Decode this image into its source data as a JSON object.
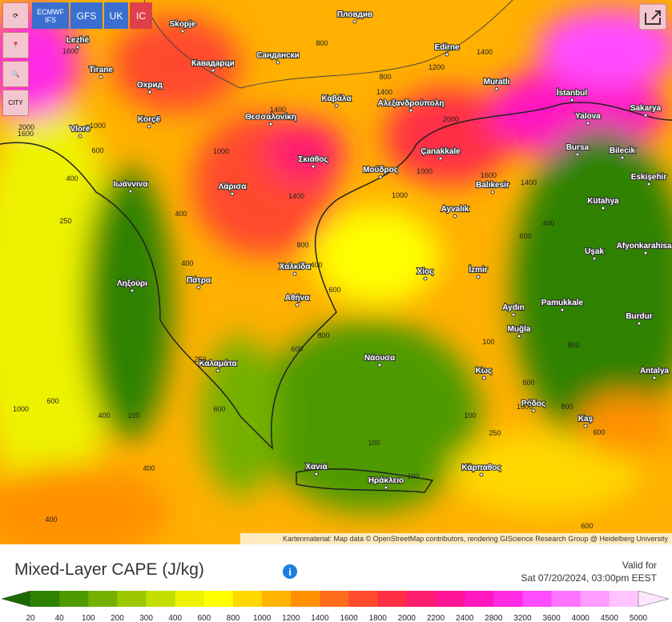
{
  "controls": {
    "models": [
      "ECMWF IFS",
      "GFS",
      "UK",
      "IC"
    ],
    "city_button": "CITY"
  },
  "cities": [
    "Skopje",
    "Пловдив",
    "Lezhë",
    "Tirane",
    "Кавадарци",
    "Сандански",
    "Edirne",
    "Охрид",
    "Muratlı",
    "İstanbul",
    "Καβάλα",
    "Αλεξανδρούπολη",
    "Θεσσαλονίκη",
    "Korçë",
    "Vlorë",
    "Yalova",
    "Sakarya",
    "Çanakkale",
    "Bursa",
    "Bilecik",
    "Σκιάθος",
    "Μούδρος",
    "Balıkesir",
    "Eskişehir",
    "Ιωάννινα",
    "Λάρισα",
    "Kütahya",
    "Ayvalık",
    "Afyonkarahisar",
    "Uşak",
    "Χαλκίδα",
    "Χίος",
    "İzmir",
    "Ληξούρι",
    "Πάτρα",
    "Αθήνα",
    "Aydın",
    "Pamukkale",
    "Burdur",
    "Νάουσα",
    "Muğla",
    "Καλαμάτα",
    "Κως",
    "Antalya",
    "Ρόδος",
    "Kaş",
    "Χανιά",
    "Ηράκλειο",
    "Κάρπαθος"
  ],
  "contours": [
    1600,
    800,
    1400,
    800,
    1400,
    2000,
    1600,
    1400,
    1200,
    1000,
    1400,
    1600,
    2000,
    1000,
    1400,
    1000,
    800,
    600,
    400,
    400,
    250,
    600,
    400,
    1000,
    400,
    100,
    600,
    600,
    400,
    800,
    400,
    600,
    800,
    1000,
    100,
    250,
    600,
    100,
    100,
    250,
    100,
    600,
    800,
    600,
    1000,
    400,
    600,
    400
  ],
  "attribution": "Kartenmaterial: Map data © OpenStreetMap contributors, rendering GIScience Research Group @ Heidelberg University",
  "title": "Mixed-Layer CAPE (J/kg)",
  "valid_label": "Valid for",
  "valid_time": "Sat 07/20/2024, 03:00pm EEST",
  "legend": {
    "labels": [
      20,
      40,
      100,
      200,
      300,
      400,
      600,
      800,
      1000,
      1200,
      1400,
      1600,
      1800,
      2000,
      2200,
      2400,
      2800,
      3200,
      3600,
      4000,
      4500,
      5000
    ],
    "colors": [
      "#1a6a00",
      "#2f8200",
      "#4e9a00",
      "#75b000",
      "#9cc800",
      "#c4de00",
      "#eef200",
      "#ffff00",
      "#ffd800",
      "#ffb400",
      "#ff9000",
      "#ff6c1c",
      "#ff4a2e",
      "#ff2e46",
      "#ff1d6e",
      "#ff1496",
      "#ff18c0",
      "#ff2ce4",
      "#ff4cff",
      "#ff74ff",
      "#ff9cff",
      "#ffc4ff",
      "#ffe6ff"
    ]
  }
}
